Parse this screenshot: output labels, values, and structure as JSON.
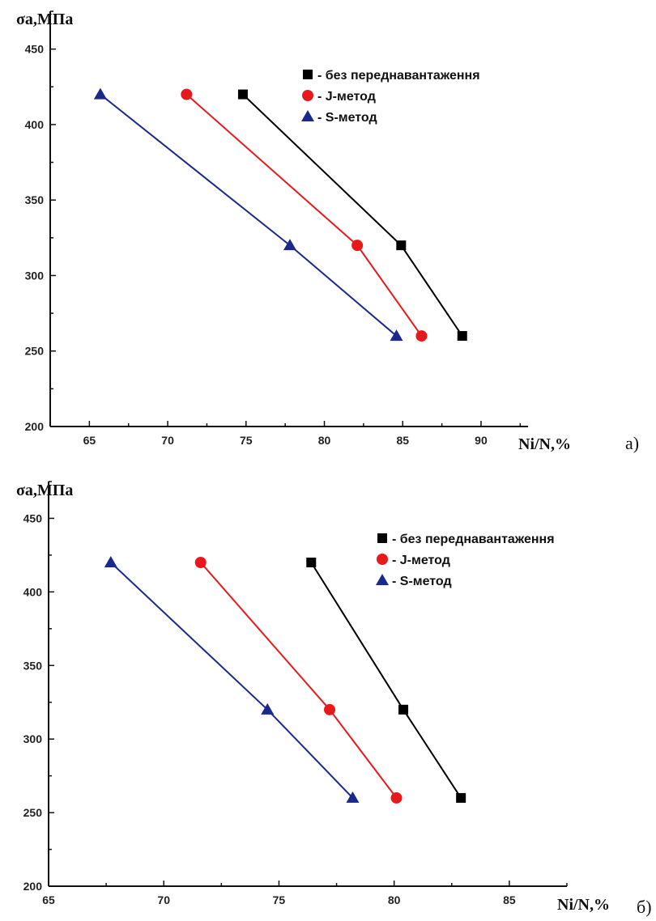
{
  "chart_data": [
    {
      "type": "line",
      "panel_label": "а)",
      "ylabel": "σа,МПа",
      "xlabel": "Ni/N,%",
      "xlim": [
        62.5,
        93
      ],
      "ylim": [
        200,
        475
      ],
      "xticks": [
        65,
        70,
        75,
        80,
        85,
        90
      ],
      "yticks": [
        200,
        250,
        300,
        350,
        400,
        450
      ],
      "legend_position": "top-right",
      "series": [
        {
          "name": "- без переднавантаження",
          "marker": "square",
          "color": "#000000",
          "x": [
            74.8,
            84.9,
            88.8
          ],
          "y": [
            420,
            320,
            260
          ]
        },
        {
          "name": "- J-метод",
          "marker": "circle",
          "color": "#e8191b",
          "x": [
            71.2,
            82.1,
            86.2
          ],
          "y": [
            420,
            320,
            260
          ]
        },
        {
          "name": "- S-метод",
          "marker": "triangle",
          "color": "#1a2a8c",
          "x": [
            65.7,
            77.8,
            84.6
          ],
          "y": [
            420,
            320,
            260
          ]
        }
      ]
    },
    {
      "type": "line",
      "panel_label": "б)",
      "ylabel": "σа,МПа",
      "xlabel": "Ni/N,%",
      "xlim": [
        65,
        87.5
      ],
      "ylim": [
        200,
        475
      ],
      "xticks": [
        65,
        70,
        75,
        80,
        85
      ],
      "yticks": [
        200,
        250,
        300,
        350,
        400,
        450
      ],
      "legend_position": "top-right",
      "series": [
        {
          "name": "- без переднавантаження",
          "marker": "square",
          "color": "#000000",
          "x": [
            76.4,
            80.4,
            82.9
          ],
          "y": [
            420,
            320,
            260
          ]
        },
        {
          "name": "- J-метод",
          "marker": "circle",
          "color": "#e8191b",
          "x": [
            71.6,
            77.2,
            80.1
          ],
          "y": [
            420,
            320,
            260
          ]
        },
        {
          "name": "- S-метод",
          "marker": "triangle",
          "color": "#1a2a8c",
          "x": [
            67.7,
            74.5,
            78.2
          ],
          "y": [
            420,
            320,
            260
          ]
        }
      ]
    }
  ]
}
